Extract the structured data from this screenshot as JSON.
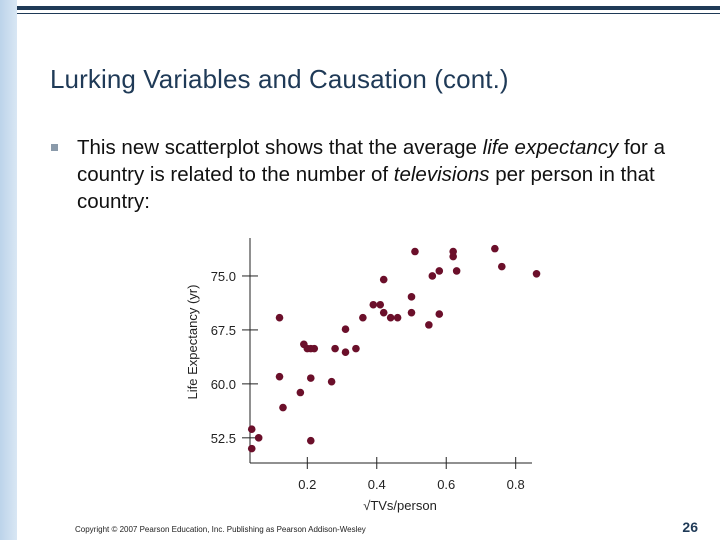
{
  "slide": {
    "title": "Lurking Variables and Causation (cont.)",
    "bullet": {
      "t1": "This new scatterplot shows that the average ",
      "t2": "life expectancy",
      "t3": " for a country is related to the number of ",
      "t4": "televisions",
      "t5": " per person in that country:"
    },
    "copyright": "Copyright © 2007 Pearson Education, Inc. Publishing as Pearson Addison-Wesley",
    "page_number": "26"
  },
  "colors": {
    "title": "#1f3a57",
    "point": "#6b0f2a",
    "axis": "#222222"
  },
  "chart_data": {
    "type": "scatter",
    "xlabel": "√TVs/person",
    "ylabel": "Life Expectancy (yr)",
    "xticks": [
      0.2,
      0.4,
      0.6,
      0.8
    ],
    "yticks": [
      52.5,
      60.0,
      67.5,
      75.0
    ],
    "xlim": [
      0.035,
      0.87
    ],
    "ylim": [
      49.0,
      80.0
    ],
    "points": [
      {
        "x": 0.04,
        "y": 53.7
      },
      {
        "x": 0.04,
        "y": 51.0
      },
      {
        "x": 0.06,
        "y": 52.5
      },
      {
        "x": 0.12,
        "y": 69.2
      },
      {
        "x": 0.12,
        "y": 61.0
      },
      {
        "x": 0.13,
        "y": 56.7
      },
      {
        "x": 0.18,
        "y": 58.8
      },
      {
        "x": 0.19,
        "y": 65.5
      },
      {
        "x": 0.2,
        "y": 64.9
      },
      {
        "x": 0.21,
        "y": 64.9
      },
      {
        "x": 0.22,
        "y": 64.9
      },
      {
        "x": 0.21,
        "y": 60.8
      },
      {
        "x": 0.21,
        "y": 52.1
      },
      {
        "x": 0.27,
        "y": 60.3
      },
      {
        "x": 0.28,
        "y": 64.9
      },
      {
        "x": 0.31,
        "y": 64.4
      },
      {
        "x": 0.31,
        "y": 67.6
      },
      {
        "x": 0.34,
        "y": 64.9
      },
      {
        "x": 0.36,
        "y": 69.2
      },
      {
        "x": 0.39,
        "y": 71.0
      },
      {
        "x": 0.41,
        "y": 71.0
      },
      {
        "x": 0.42,
        "y": 69.9
      },
      {
        "x": 0.42,
        "y": 74.5
      },
      {
        "x": 0.44,
        "y": 69.2
      },
      {
        "x": 0.46,
        "y": 69.2
      },
      {
        "x": 0.5,
        "y": 72.1
      },
      {
        "x": 0.5,
        "y": 69.9
      },
      {
        "x": 0.51,
        "y": 78.4
      },
      {
        "x": 0.55,
        "y": 68.2
      },
      {
        "x": 0.56,
        "y": 75.0
      },
      {
        "x": 0.58,
        "y": 75.7
      },
      {
        "x": 0.58,
        "y": 69.7
      },
      {
        "x": 0.62,
        "y": 77.7
      },
      {
        "x": 0.62,
        "y": 78.4
      },
      {
        "x": 0.63,
        "y": 75.7
      },
      {
        "x": 0.74,
        "y": 78.8
      },
      {
        "x": 0.76,
        "y": 76.3
      },
      {
        "x": 0.86,
        "y": 75.3
      }
    ]
  }
}
